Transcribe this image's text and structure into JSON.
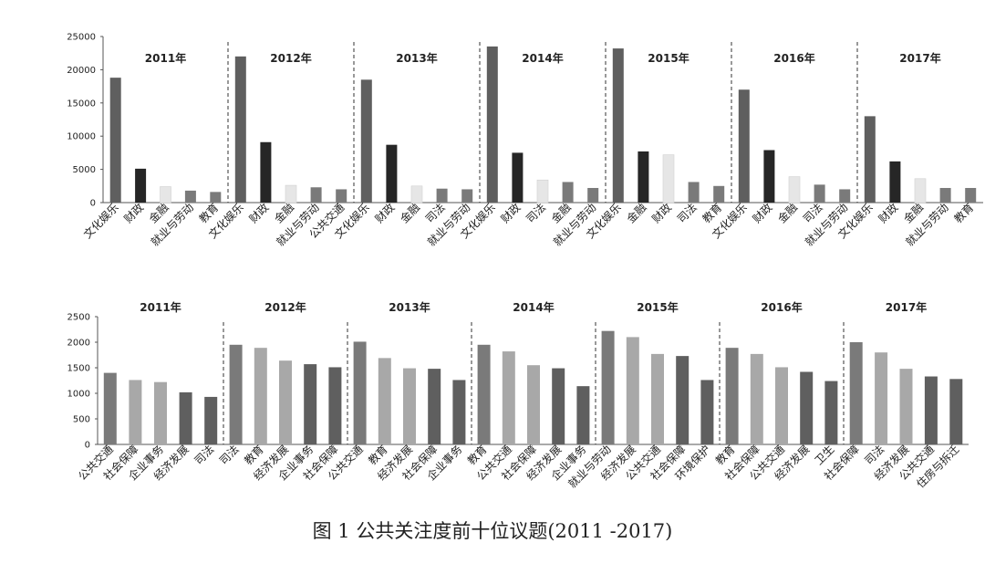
{
  "caption": "图 1    公共关注度前十位议题(2011 -2017)",
  "colors": {
    "dark": "#5f5f5f",
    "darker": "#262626",
    "light": "#e6e6e6",
    "mid": "#7a7a7a",
    "soft": "#a8a8a8"
  },
  "chart_data": [
    {
      "type": "bar",
      "ylim": [
        0,
        25000
      ],
      "yticks": [
        0,
        5000,
        10000,
        15000,
        20000,
        25000
      ],
      "groups": [
        {
          "label": "2011年",
          "categories": [
            "文化娱乐",
            "财政",
            "金融",
            "就业与劳动",
            "教育"
          ],
          "values": [
            18800,
            5100,
            2400,
            1800,
            1600
          ],
          "shades": [
            "dark",
            "darker",
            "light",
            "mid",
            "mid"
          ]
        },
        {
          "label": "2012年",
          "categories": [
            "文化娱乐",
            "财政",
            "金融",
            "就业与劳动",
            "公共交通"
          ],
          "values": [
            22000,
            9100,
            2600,
            2300,
            2000
          ],
          "shades": [
            "dark",
            "darker",
            "light",
            "mid",
            "mid"
          ]
        },
        {
          "label": "2013年",
          "categories": [
            "文化娱乐",
            "财政",
            "金融",
            "司法",
            "就业与劳动"
          ],
          "values": [
            18500,
            8700,
            2500,
            2100,
            2000
          ],
          "shades": [
            "dark",
            "darker",
            "light",
            "mid",
            "mid"
          ]
        },
        {
          "label": "2014年",
          "categories": [
            "文化娱乐",
            "财政",
            "司法",
            "金融",
            "就业与劳动"
          ],
          "values": [
            23500,
            7500,
            3400,
            3100,
            2200
          ],
          "shades": [
            "dark",
            "darker",
            "light",
            "mid",
            "mid"
          ]
        },
        {
          "label": "2015年",
          "categories": [
            "文化娱乐",
            "金融",
            "财政",
            "司法",
            "教育"
          ],
          "values": [
            23200,
            7700,
            7200,
            3100,
            2500
          ],
          "shades": [
            "dark",
            "darker",
            "light",
            "mid",
            "mid"
          ]
        },
        {
          "label": "2016年",
          "categories": [
            "文化娱乐",
            "财政",
            "金融",
            "司法",
            "就业与劳动"
          ],
          "values": [
            17000,
            7900,
            3900,
            2700,
            2000
          ],
          "shades": [
            "dark",
            "darker",
            "light",
            "mid",
            "mid"
          ]
        },
        {
          "label": "2017年",
          "categories": [
            "文化娱乐",
            "财政",
            "金融",
            "就业与劳动",
            "教育"
          ],
          "values": [
            13000,
            6200,
            3600,
            2200,
            2200
          ],
          "shades": [
            "dark",
            "darker",
            "light",
            "mid",
            "mid"
          ]
        }
      ]
    },
    {
      "type": "bar",
      "ylim": [
        0,
        2500
      ],
      "yticks": [
        0,
        500,
        1000,
        1500,
        2000,
        2500
      ],
      "groups": [
        {
          "label": "2011年",
          "categories": [
            "公共交通",
            "社会保障",
            "企业事务",
            "经济发展",
            "司法"
          ],
          "values": [
            1400,
            1260,
            1220,
            1020,
            930
          ],
          "shades": [
            "mid",
            "soft",
            "soft",
            "dark",
            "dark"
          ]
        },
        {
          "label": "2012年",
          "categories": [
            "司法",
            "教育",
            "经济发展",
            "企业事务",
            "社会保障"
          ],
          "values": [
            1950,
            1890,
            1640,
            1570,
            1510
          ],
          "shades": [
            "mid",
            "soft",
            "soft",
            "dark",
            "dark"
          ]
        },
        {
          "label": "2013年",
          "categories": [
            "公共交通",
            "教育",
            "经济发展",
            "社会保障",
            "企业事务"
          ],
          "values": [
            2010,
            1690,
            1490,
            1480,
            1260
          ],
          "shades": [
            "mid",
            "soft",
            "soft",
            "dark",
            "dark"
          ]
        },
        {
          "label": "2014年",
          "categories": [
            "教育",
            "公共交通",
            "社会保障",
            "经济发展",
            "企业事务"
          ],
          "values": [
            1950,
            1820,
            1550,
            1490,
            1140
          ],
          "shades": [
            "mid",
            "soft",
            "soft",
            "dark",
            "dark"
          ]
        },
        {
          "label": "2015年",
          "categories": [
            "就业与劳动",
            "经济发展",
            "公共交通",
            "社会保障",
            "环境保护"
          ],
          "values": [
            2220,
            2100,
            1770,
            1730,
            1260
          ],
          "shades": [
            "mid",
            "soft",
            "soft",
            "dark",
            "dark"
          ]
        },
        {
          "label": "2016年",
          "categories": [
            "教育",
            "社会保障",
            "公共交通",
            "经济发展",
            "卫生"
          ],
          "values": [
            1890,
            1770,
            1510,
            1420,
            1240
          ],
          "shades": [
            "mid",
            "soft",
            "soft",
            "dark",
            "dark"
          ]
        },
        {
          "label": "2017年",
          "categories": [
            "社会保障",
            "司法",
            "经济发展",
            "公共交通",
            "住房与拆迁"
          ],
          "values": [
            2000,
            1800,
            1480,
            1330,
            1280
          ],
          "shades": [
            "mid",
            "soft",
            "soft",
            "dark",
            "dark"
          ]
        }
      ]
    }
  ]
}
